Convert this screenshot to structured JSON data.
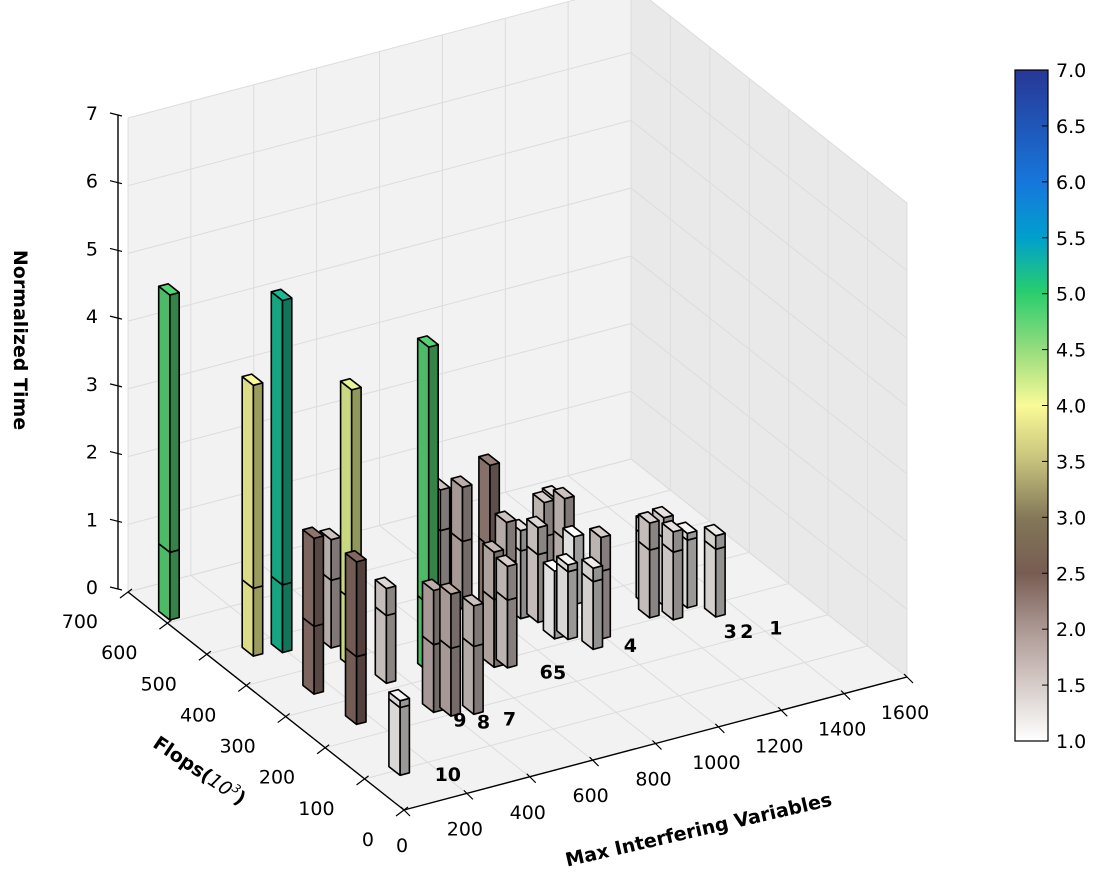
{
  "chart_data": {
    "type": "bar3d",
    "zlabel": "Normalized Time",
    "xlabel": "Max Interfering Variables",
    "ylabel_prefix": "Flops(",
    "ylabel_math": "10",
    "ylabel_exp": "3",
    "ylabel_suffix": ")",
    "xlim": [
      0,
      1600
    ],
    "ylim": [
      0,
      700
    ],
    "zlim": [
      0,
      7
    ],
    "xticks": [
      0,
      200,
      400,
      600,
      800,
      1000,
      1200,
      1400,
      1600
    ],
    "yticks": [
      0,
      100,
      200,
      300,
      400,
      500,
      600,
      700
    ],
    "zticks": [
      0,
      1,
      2,
      3,
      4,
      5,
      6,
      7
    ],
    "colorbar": {
      "colormap": "terrain_r",
      "range": [
        1.0,
        7.0
      ],
      "ticks": [
        "1.0",
        "1.5",
        "2.0",
        "2.5",
        "3.0",
        "3.5",
        "4.0",
        "4.5",
        "5.0",
        "5.5",
        "6.0",
        "6.5",
        "7.0"
      ]
    },
    "bars": [
      {
        "x": 30,
        "y": 620,
        "z": 4.8
      },
      {
        "x": 120,
        "y": 480,
        "z": 4.0
      },
      {
        "x": 200,
        "y": 470,
        "z": 5.2
      },
      {
        "x": 150,
        "y": 350,
        "z": 2.3
      },
      {
        "x": 160,
        "y": 250,
        "z": 2.4
      },
      {
        "x": 110,
        "y": 100,
        "z": 1.1
      },
      {
        "x": 320,
        "y": 390,
        "z": 4.1
      },
      {
        "x": 330,
        "y": 450,
        "z": 1.6
      },
      {
        "x": 355,
        "y": 330,
        "z": 1.4
      },
      {
        "x": 380,
        "y": 230,
        "z": 1.8
      },
      {
        "x": 410,
        "y": 210,
        "z": 1.8
      },
      {
        "x": 490,
        "y": 330,
        "z": 4.8
      },
      {
        "x": 470,
        "y": 200,
        "z": 1.6
      },
      {
        "x": 740,
        "y": 500,
        "z": 1.6
      },
      {
        "x": 760,
        "y": 460,
        "z": 1.8
      },
      {
        "x": 660,
        "y": 300,
        "z": 1.7
      },
      {
        "x": 690,
        "y": 290,
        "z": 1.5
      },
      {
        "x": 810,
        "y": 430,
        "z": 2.2
      },
      {
        "x": 800,
        "y": 380,
        "z": 1.6
      },
      {
        "x": 870,
        "y": 400,
        "z": 1.3
      },
      {
        "x": 900,
        "y": 380,
        "z": 1.4
      },
      {
        "x": 890,
        "y": 330,
        "z": 1.0
      },
      {
        "x": 920,
        "y": 320,
        "z": 1.1
      },
      {
        "x": 950,
        "y": 280,
        "z": 1.2
      },
      {
        "x": 970,
        "y": 420,
        "z": 1.5
      },
      {
        "x": 1010,
        "y": 400,
        "z": 1.6
      },
      {
        "x": 1040,
        "y": 400,
        "z": 1.0
      },
      {
        "x": 1050,
        "y": 460,
        "z": 1.3
      },
      {
        "x": 1000,
        "y": 300,
        "z": 1.5
      },
      {
        "x": 1180,
        "y": 320,
        "z": 1.4
      },
      {
        "x": 1230,
        "y": 300,
        "z": 1.3
      },
      {
        "x": 1210,
        "y": 350,
        "z": 1.2
      },
      {
        "x": 1250,
        "y": 340,
        "z": 1.3
      },
      {
        "x": 1300,
        "y": 320,
        "z": 1.1
      },
      {
        "x": 1340,
        "y": 280,
        "z": 1.2
      }
    ],
    "labels": [
      {
        "text": "10",
        "x": 160,
        "y": 50
      },
      {
        "text": "9",
        "x": 370,
        "y": 170
      },
      {
        "text": "8",
        "x": 420,
        "y": 150
      },
      {
        "text": "7",
        "x": 490,
        "y": 140
      },
      {
        "text": "6",
        "x": 720,
        "y": 230
      },
      {
        "text": "5",
        "x": 750,
        "y": 220
      },
      {
        "text": "4",
        "x": 1000,
        "y": 240
      },
      {
        "text": "3",
        "x": 1280,
        "y": 210
      },
      {
        "text": "2",
        "x": 1320,
        "y": 200
      },
      {
        "text": "1",
        "x": 1400,
        "y": 190
      }
    ]
  }
}
